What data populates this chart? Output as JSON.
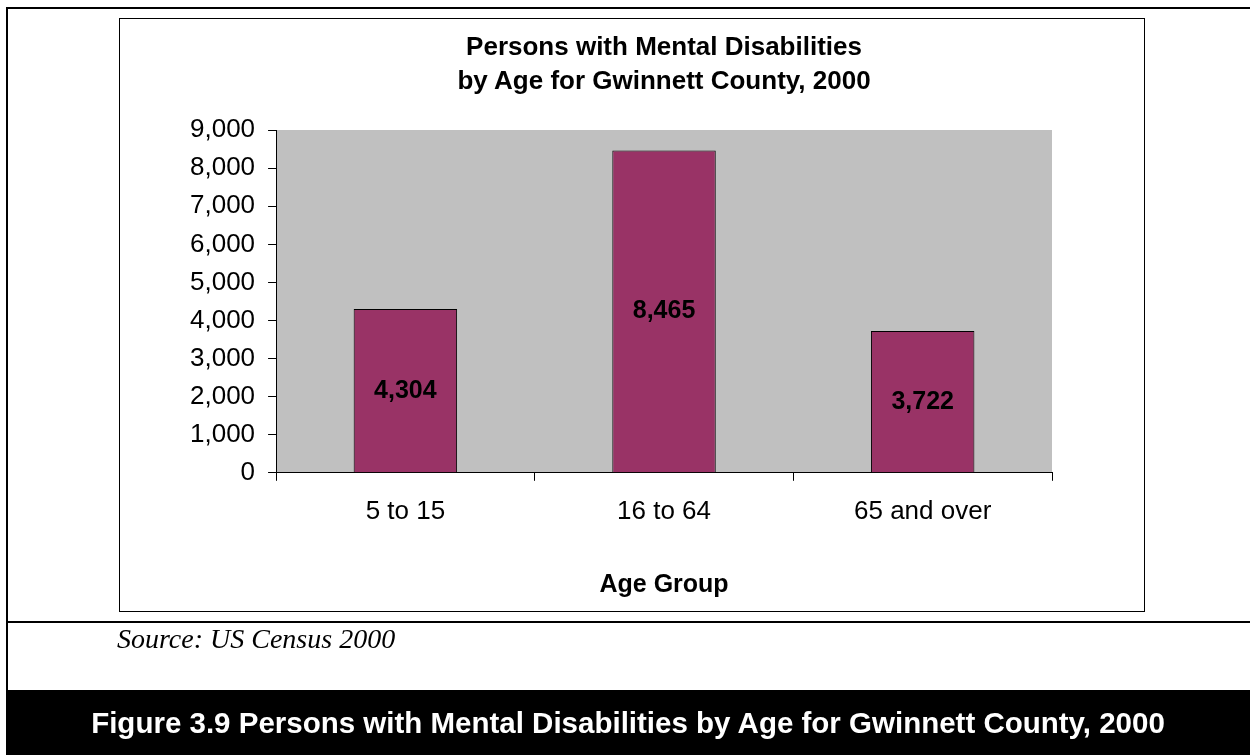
{
  "chart_data": {
    "type": "bar",
    "title": "Persons with Mental Disabilities\nby Age for Gwinnett County, 2000",
    "xlabel": "Age Group",
    "categories": [
      "5 to 15",
      "16 to 64",
      "65 and over"
    ],
    "values": [
      4304,
      8465,
      3722
    ],
    "color": "#993366",
    "value_labels": [
      "4,304",
      "8,465",
      "3,722"
    ],
    "ylim": [
      0,
      9000
    ],
    "yticks": [
      {
        "value": 0,
        "label": "0"
      },
      {
        "value": 1000,
        "label": "1,000"
      },
      {
        "value": 2000,
        "label": "2,000"
      },
      {
        "value": 3000,
        "label": "3,000"
      },
      {
        "value": 4000,
        "label": "4,000"
      },
      {
        "value": 5000,
        "label": "5,000"
      },
      {
        "value": 6000,
        "label": "6,000"
      },
      {
        "value": 7000,
        "label": "7,000"
      },
      {
        "value": 8000,
        "label": "8,000"
      },
      {
        "value": 9000,
        "label": "9,000"
      }
    ],
    "annotations": [
      "Source: US Census 2000",
      "Figure 3.9 Persons with Mental Disabilities by Age for Gwinnett County, 2000"
    ]
  }
}
